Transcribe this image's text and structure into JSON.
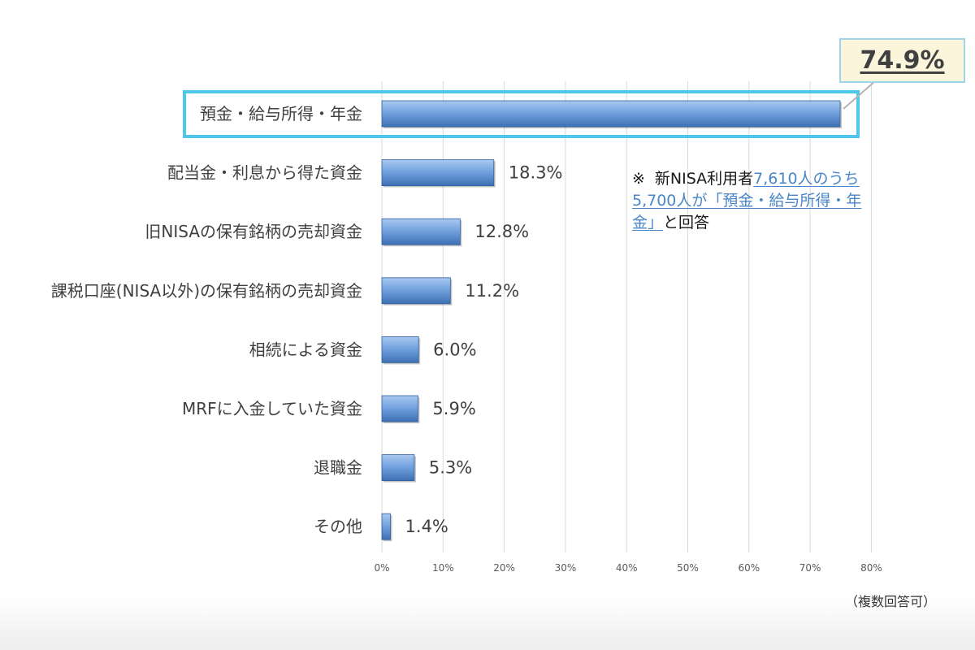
{
  "chart_data": {
    "type": "bar",
    "orientation": "horizontal",
    "categories": [
      "預金・給与所得・年金",
      "配当金・利息から得た資金",
      "旧NISAの保有銘柄の売却資金",
      "課税口座(NISA以外)の保有銘柄の売却資金",
      "相続による資金",
      "MRFに入金していた資金",
      "退職金",
      "その他"
    ],
    "values": [
      74.9,
      18.3,
      12.8,
      11.2,
      6.0,
      5.9,
      5.3,
      1.4
    ],
    "value_labels": [
      "",
      "18.3%",
      "12.8%",
      "11.2%",
      "6.0%",
      "5.9%",
      "5.3%",
      "1.4%"
    ],
    "unit": "%",
    "xlim": [
      0,
      80
    ],
    "xticks": [
      0,
      10,
      20,
      30,
      40,
      50,
      60,
      70,
      80
    ],
    "xtick_labels": [
      "0%",
      "10%",
      "20%",
      "30%",
      "40%",
      "50%",
      "60%",
      "70%",
      "80%"
    ],
    "grid": true,
    "bar_color": "#6f9fdc",
    "highlight_color": "#4fc6ec",
    "highlight_index": 0,
    "callout_value": "74.9%"
  },
  "note": {
    "mark": "※",
    "text_before": "新NISA利用者",
    "text_highlight": "7,610人のうち5,700人が「預金・給与所得・年金」",
    "text_after": "と回答"
  },
  "footnote": "（複数回答可）"
}
